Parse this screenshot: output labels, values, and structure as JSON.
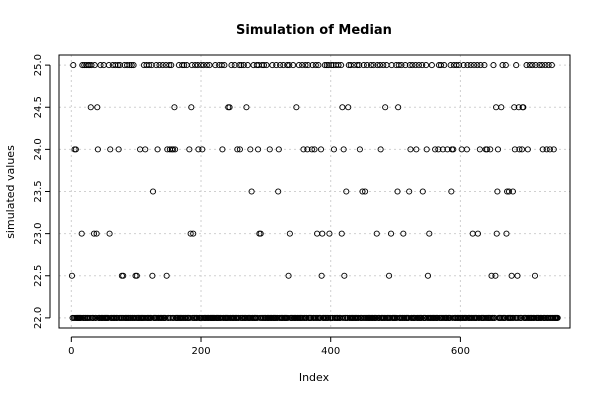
{
  "chart_data": {
    "type": "scatter",
    "title": "Simulation of Median",
    "xlabel": "Index",
    "ylabel": "simulated values",
    "xlim": [
      -19,
      769
    ],
    "ylim": [
      21.88,
      25.12
    ],
    "grid": true,
    "x_ticks": [
      0,
      200,
      400,
      600
    ],
    "y_ticks": [
      22.0,
      22.5,
      23.0,
      23.5,
      24.0,
      24.5,
      25.0
    ],
    "x_tick_labels": [
      "0",
      "200",
      "400",
      "600"
    ],
    "y_tick_labels": [
      "22.0",
      "22.5",
      "23.0",
      "23.5",
      "24.0",
      "24.5",
      "25.0"
    ],
    "n_points": 750,
    "series": [
      {
        "values_25_0_at_index": [
          3,
          17,
          20,
          23,
          26,
          28,
          31,
          36,
          41,
          45,
          50,
          58,
          64,
          68,
          72,
          75,
          82,
          86,
          90,
          93,
          96,
          106,
          112,
          116,
          120,
          124,
          131,
          136,
          141,
          146,
          151,
          154,
          159,
          166,
          171,
          174,
          178,
          186,
          191,
          195,
          200,
          204,
          209,
          213,
          222,
          228,
          232,
          236,
          242,
          247,
          252,
          259,
          262,
          266,
          272,
          276,
          281,
          286,
          289,
          294,
          297,
          301,
          306,
          310,
          316,
          322,
          327,
          333,
          336,
          342,
          351,
          356,
          361,
          365,
          372,
          377,
          381,
          386,
          391,
          394,
          397,
          401,
          404,
          408,
          412,
          416,
          424,
          428,
          431,
          436,
          441,
          444,
          451,
          456,
          462,
          466,
          472,
          476,
          481,
          486,
          490,
          494,
          501,
          505,
          509,
          515,
          522,
          526,
          531,
          536,
          541,
          547,
          552,
          556,
          561,
          567,
          570,
          575,
          580,
          585,
          590,
          594,
          598,
          605,
          611,
          616,
          621,
          626,
          631,
          637,
          641,
          646,
          651,
          656,
          665,
          670,
          675,
          681,
          686,
          691,
          697,
          702,
          707,
          711,
          716,
          722,
          726,
          731,
          736,
          741
        ],
        "values_24_5_at_index": [
          30,
          40,
          159,
          185,
          242,
          244,
          270,
          337,
          347,
          385,
          418,
          427,
          484,
          504,
          655,
          663,
          683,
          690,
          696,
          697
        ],
        "values_24_0_at_index": [
          5,
          7,
          39,
          41,
          60,
          73,
          106,
          114,
          133,
          148,
          152,
          155,
          157,
          160,
          182,
          188,
          196,
          202,
          233,
          256,
          260,
          276,
          288,
          306,
          320,
          358,
          364,
          371,
          375,
          379,
          385,
          405,
          420,
          445,
          477,
          512,
          523,
          532,
          548,
          561,
          566,
          573,
          580,
          587,
          589,
          602,
          610,
          630,
          639,
          641,
          646,
          658,
          684,
          691,
          695,
          704,
          727,
          733,
          738,
          744
        ],
        "values_23_5_at_index": [
          126,
          188,
          278,
          319,
          424,
          449,
          453,
          503,
          521,
          542,
          586,
          657,
          672,
          675,
          681
        ],
        "values_23_0_at_index": [
          16,
          35,
          39,
          59,
          184,
          188,
          290,
          292,
          337,
          379,
          387,
          398,
          417,
          471,
          493,
          512,
          552,
          619,
          627,
          656,
          671
        ],
        "values_22_5_at_index": [
          1,
          78,
          80,
          99,
          101,
          125,
          147,
          335,
          386,
          421,
          490,
          550,
          648,
          654,
          679,
          688,
          715
        ],
        "values_22_0": "all remaining indices"
      }
    ]
  }
}
